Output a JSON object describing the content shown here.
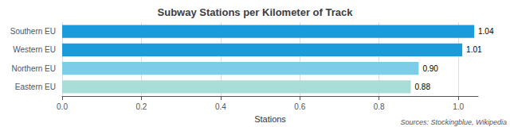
{
  "chart_data": {
    "type": "bar",
    "orientation": "horizontal",
    "title": "Subway Stations per Kilometer of Track",
    "categories": [
      "Southern EU",
      "Western EU",
      "Northern EU",
      "Eastern EU"
    ],
    "values": [
      1.04,
      1.01,
      0.9,
      0.88
    ],
    "value_labels": [
      "1.04",
      "1.01",
      "0.90",
      "0.88"
    ],
    "data_labels": true,
    "colors": [
      "#1a9bdc",
      "#1a9bdc",
      "#7ecde8",
      "#a8ddd8"
    ],
    "xlabel": "Stations",
    "xlim": [
      0,
      1.05
    ],
    "xticks": [
      {
        "value": 0,
        "label": "0.0"
      },
      0.2,
      0.4,
      0.6,
      0.8,
      {
        "value": 1,
        "label": "1.0"
      }
    ],
    "grid": true,
    "annotations": [
      "Sources: Stockingblue, Wikipedia"
    ]
  }
}
